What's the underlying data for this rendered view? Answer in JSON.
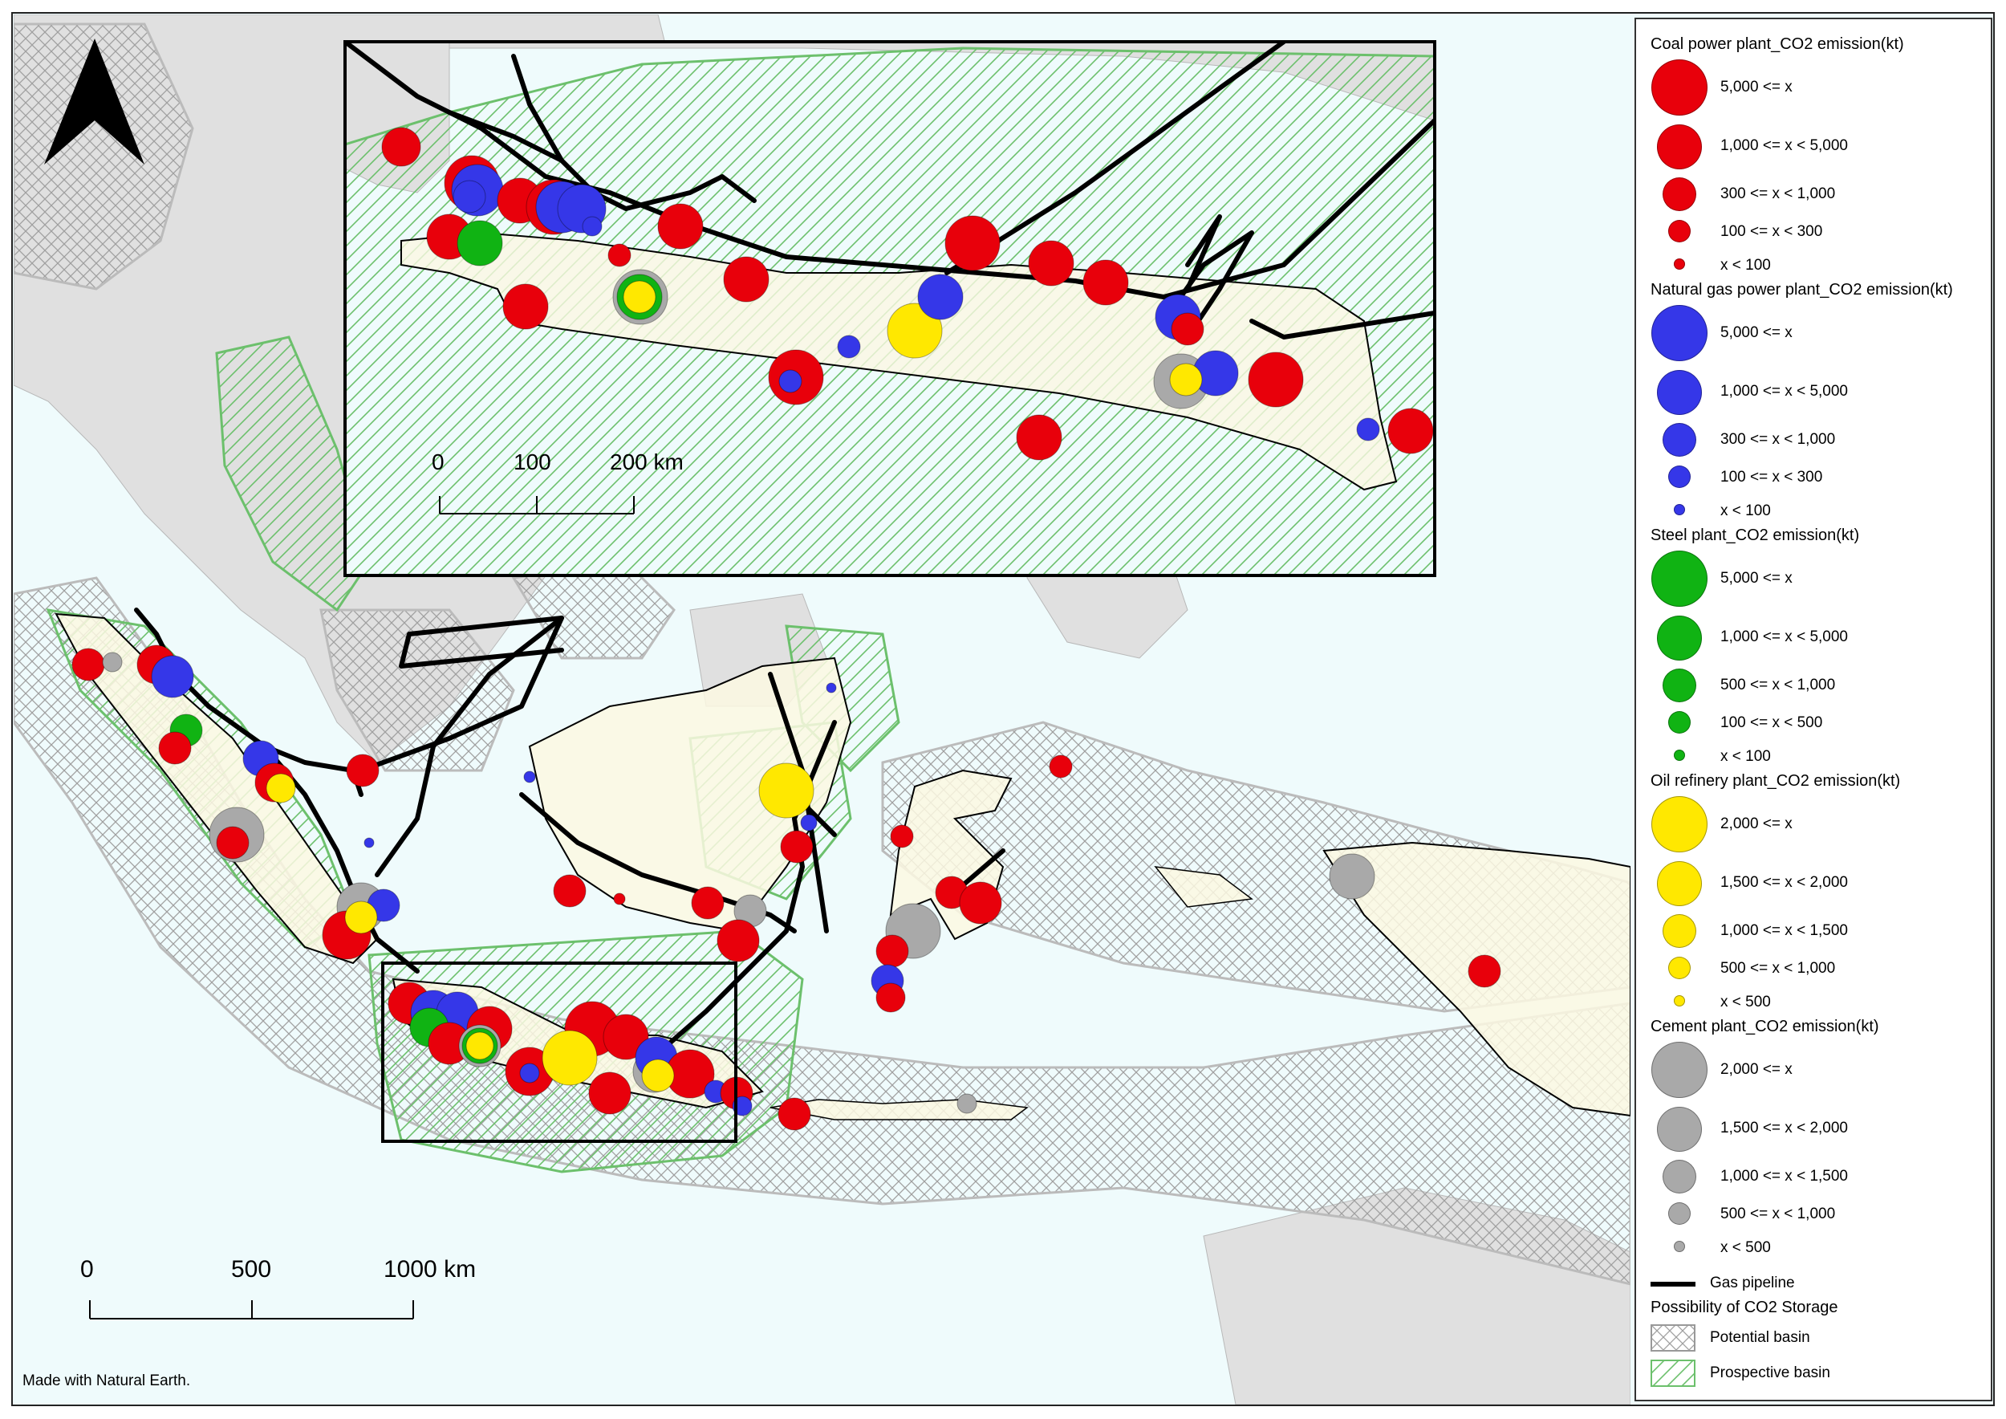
{
  "colors": {
    "sea": "#effbfc",
    "land_other": "#e0e0e0",
    "land_indonesia": "#fbf8e2",
    "coal": "#e8000b",
    "gas": "#3537e8",
    "steel": "#10b313",
    "refinery": "#ffe800",
    "cement": "#a9a9a9",
    "pipeline": "#000000",
    "potential_basin": "#aaaaaa",
    "prospective_basin": "#6cc06c"
  },
  "map": {
    "north_arrow_icon": "north-arrow-icon",
    "credit": "Made with Natural Earth.",
    "scale_main": [
      "0",
      "500",
      "1000 km"
    ],
    "scale_inset": [
      "0",
      "100",
      "200 km"
    ]
  },
  "legend": {
    "coal": {
      "title": "Coal power plant_CO2 emission(kt)",
      "items": [
        "5,000 <= x",
        "1,000 <= x < 5,000",
        "300 <= x < 1,000",
        "100 <= x < 300",
        "x < 100"
      ]
    },
    "gas": {
      "title": "Natural gas power plant_CO2 emission(kt)",
      "items": [
        "5,000 <= x",
        "1,000 <= x < 5,000",
        "300 <= x < 1,000",
        "100 <= x < 300",
        "x < 100"
      ]
    },
    "steel": {
      "title": "Steel plant_CO2 emission(kt)",
      "items": [
        "5,000 <= x",
        "1,000 <= x < 5,000",
        "500 <= x < 1,000",
        "100 <= x < 500",
        "x < 100"
      ]
    },
    "refinery": {
      "title": "Oil refinery plant_CO2 emission(kt)",
      "items": [
        "2,000 <= x",
        "1,500 <= x < 2,000",
        "1,000 <= x < 1,500",
        "500 <= x < 1,000",
        "x < 500"
      ]
    },
    "cement": {
      "title": "Cement plant_CO2 emission(kt)",
      "items": [
        "2,000 <= x",
        "1,500 <= x < 2,000",
        "1,000 <= x < 1,500",
        "500 <= x < 1,000",
        "x < 500"
      ]
    },
    "pipeline_label": "Gas pipeline",
    "storage_title": "Possibility of CO2 Storage",
    "potential_label": "Potential basin",
    "prospective_label": "Prospective basin"
  }
}
